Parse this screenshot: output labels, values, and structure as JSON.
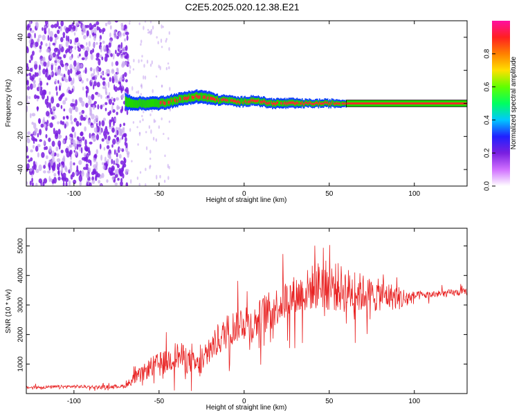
{
  "title": "C2E5.2025.020.12.38.E21",
  "colors": {
    "snr_line": "#e82020",
    "ridge_hot": "#ff2a2a",
    "ridge_mid": "#1fd600",
    "ridge_cool": "#0a3cff",
    "noise": "#7a1fe0",
    "noise_light": "#c8a8f0",
    "ridge_outline": "#000000"
  },
  "colormap": [
    "#ffffff",
    "#d070ff",
    "#7a1fe0",
    "#2020ff",
    "#00c8ff",
    "#00ff60",
    "#60ff00",
    "#ffe000",
    "#ff8000",
    "#ff2020",
    "#ff10a0"
  ],
  "chart_data": [
    {
      "type": "heatmap",
      "title": "C2E5.2025.020.12.38.E21",
      "xlabel": "Height of straight line (km)",
      "ylabel": "Frequency (Hz)",
      "xlim": [
        -128,
        131
      ],
      "ylim": [
        -50,
        50
      ],
      "x_ticks": [
        -100,
        -50,
        0,
        50,
        100
      ],
      "x_tick_labels": [
        "-100",
        "-50",
        "0",
        "50",
        "100"
      ],
      "y_ticks": [
        -40,
        -20,
        0,
        20,
        40
      ],
      "y_tick_labels": [
        "-40",
        "-20",
        "0",
        "20",
        "40"
      ],
      "colorbar": {
        "label": "Normalized spectral amplitude",
        "range": [
          0,
          1
        ],
        "ticks": [
          0,
          0.2,
          0.4,
          0.6,
          0.8
        ],
        "tick_labels": [
          "0.0",
          "0.2",
          "0.4",
          "0.6",
          "0.8"
        ]
      },
      "noise_region_km": [
        -128,
        -68
      ],
      "signal_ridge": {
        "x": [
          -70,
          -65,
          -60,
          -55,
          -50,
          -45,
          -40,
          -35,
          -30,
          -25,
          -20,
          -15,
          -10,
          -5,
          0,
          5,
          10,
          15,
          20,
          25,
          30,
          35,
          40,
          45,
          50,
          55,
          60,
          70,
          80,
          90,
          100,
          110,
          120,
          131
        ],
        "freq": [
          1,
          0,
          0,
          0,
          0,
          1,
          2,
          3,
          4,
          4,
          3,
          2,
          2,
          1,
          1,
          2,
          1,
          0,
          0,
          0,
          0,
          0,
          0,
          0,
          0,
          0,
          0,
          0,
          0,
          0,
          0,
          0,
          0,
          0
        ],
        "width": [
          5,
          4,
          4,
          4,
          4,
          4,
          4,
          4,
          4,
          4,
          4,
          3,
          3,
          3,
          3,
          3,
          3,
          3,
          3,
          3,
          3,
          2.5,
          2.5,
          2.5,
          2.5,
          2.5,
          2,
          2,
          2,
          2,
          2,
          2,
          2,
          2
        ],
        "amplitude": [
          0.3,
          0.5,
          0.55,
          0.6,
          0.6,
          0.65,
          0.7,
          0.7,
          0.75,
          0.75,
          0.75,
          0.75,
          0.8,
          0.8,
          0.8,
          0.85,
          0.85,
          0.85,
          0.9,
          0.9,
          0.9,
          0.9,
          0.9,
          0.95,
          0.95,
          0.95,
          0.95,
          0.95,
          0.95,
          0.95,
          0.95,
          0.95,
          0.95,
          0.95
        ]
      }
    },
    {
      "type": "line",
      "xlabel": "Height of straight line (km)",
      "ylabel": "SNR (10 * v/v)",
      "xlim": [
        -128,
        131
      ],
      "ylim": [
        0,
        5600
      ],
      "x_ticks": [
        -100,
        -50,
        0,
        50,
        100
      ],
      "x_tick_labels": [
        "-100",
        "-50",
        "0",
        "50",
        "100"
      ],
      "y_ticks": [
        1000,
        2000,
        3000,
        4000,
        5000
      ],
      "y_tick_labels": [
        "1000",
        "2000",
        "3000",
        "4000",
        "5000"
      ],
      "series": [
        {
          "x": [
            -128,
            -115,
            -100,
            -85,
            -70,
            -65,
            -60,
            -55,
            -50,
            -45,
            -40,
            -35,
            -30,
            -25,
            -20,
            -15,
            -10,
            -5,
            0,
            5,
            10,
            15,
            20,
            25,
            30,
            35,
            40,
            45,
            50,
            55,
            60,
            65,
            70,
            75,
            80,
            85,
            90,
            95,
            100,
            110,
            120,
            131
          ],
          "y": [
            200,
            220,
            240,
            220,
            250,
            500,
            650,
            900,
            1000,
            1100,
            1300,
            1200,
            1000,
            900,
            1500,
            1800,
            2100,
            2300,
            2500,
            2300,
            2600,
            2800,
            3000,
            3200,
            3300,
            3400,
            3600,
            3700,
            3650,
            3600,
            3500,
            3450,
            3400,
            3300,
            3350,
            3300,
            3250,
            3200,
            3300,
            3350,
            3400,
            3450
          ],
          "spread": [
            80,
            90,
            90,
            90,
            100,
            350,
            450,
            550,
            650,
            700,
            800,
            800,
            700,
            650,
            800,
            850,
            950,
            1000,
            1000,
            1000,
            1100,
            1100,
            1100,
            1150,
            1200,
            1200,
            1300,
            1400,
            1450,
            1400,
            1300,
            1200,
            1100,
            1000,
            900,
            800,
            700,
            600,
            250,
            200,
            200,
            200
          ]
        }
      ]
    }
  ]
}
